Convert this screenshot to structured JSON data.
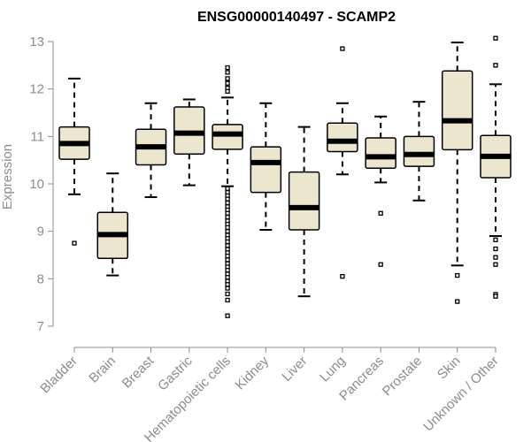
{
  "chart_data": {
    "type": "box",
    "title": "ENSG00000140497 - SCAMP2",
    "xlabel": "",
    "ylabel": "Expression",
    "ylim": [
      7,
      13
    ],
    "yticks": [
      7,
      8,
      9,
      10,
      11,
      12,
      13
    ],
    "box_fill": "#ede6cf",
    "box_stroke": "#000000",
    "axis_color": "#8c8c8c",
    "categories": [
      "Bladder",
      "Brain",
      "Breast",
      "Gastric",
      "Hematopoietic cells",
      "Kidney",
      "Liver",
      "Lung",
      "Pancreas",
      "Prostate",
      "Skin",
      "Unknown / Other"
    ],
    "boxes": [
      {
        "name": "Bladder",
        "whisker_low": 9.78,
        "q1": 10.52,
        "median": 10.85,
        "q3": 11.2,
        "whisker_high": 12.22,
        "outliers": [
          8.75
        ]
      },
      {
        "name": "Brain",
        "whisker_low": 8.07,
        "q1": 8.43,
        "median": 8.93,
        "q3": 9.4,
        "whisker_high": 10.22,
        "outliers": []
      },
      {
        "name": "Breast",
        "whisker_low": 9.72,
        "q1": 10.4,
        "median": 10.78,
        "q3": 11.15,
        "whisker_high": 11.7,
        "outliers": []
      },
      {
        "name": "Gastric",
        "whisker_low": 9.97,
        "q1": 10.63,
        "median": 11.07,
        "q3": 11.62,
        "whisker_high": 11.78,
        "outliers": []
      },
      {
        "name": "Hematopoietic cells",
        "whisker_low": 9.95,
        "q1": 10.73,
        "median": 11.05,
        "q3": 11.25,
        "whisker_high": 11.82,
        "outliers": [
          12.45,
          12.35,
          12.22,
          12.12,
          12.02,
          11.95,
          9.9,
          9.82,
          9.75,
          9.68,
          9.6,
          9.52,
          9.45,
          9.38,
          9.3,
          9.22,
          9.15,
          9.08,
          9.0,
          8.92,
          8.85,
          8.78,
          8.7,
          8.62,
          8.55,
          8.48,
          8.4,
          8.32,
          8.25,
          8.18,
          8.1,
          8.03,
          7.95,
          7.88,
          7.8,
          7.68,
          7.55,
          7.22
        ]
      },
      {
        "name": "Kidney",
        "whisker_low": 9.03,
        "q1": 9.82,
        "median": 10.45,
        "q3": 10.78,
        "whisker_high": 11.7,
        "outliers": []
      },
      {
        "name": "Liver",
        "whisker_low": 7.63,
        "q1": 9.03,
        "median": 9.5,
        "q3": 10.25,
        "whisker_high": 11.2,
        "outliers": []
      },
      {
        "name": "Lung",
        "whisker_low": 10.2,
        "q1": 10.68,
        "median": 10.9,
        "q3": 11.28,
        "whisker_high": 11.7,
        "outliers": [
          12.85,
          8.05
        ]
      },
      {
        "name": "Pancreas",
        "whisker_low": 10.03,
        "q1": 10.33,
        "median": 10.57,
        "q3": 10.97,
        "whisker_high": 11.42,
        "outliers": [
          9.38,
          8.3
        ]
      },
      {
        "name": "Prostate",
        "whisker_low": 9.65,
        "q1": 10.37,
        "median": 10.62,
        "q3": 11.0,
        "whisker_high": 11.73,
        "outliers": []
      },
      {
        "name": "Skin",
        "whisker_low": 8.28,
        "q1": 10.72,
        "median": 11.33,
        "q3": 12.38,
        "whisker_high": 12.98,
        "outliers": [
          8.07,
          7.52
        ]
      },
      {
        "name": "Unknown / Other",
        "whisker_low": 8.9,
        "q1": 10.13,
        "median": 10.58,
        "q3": 11.02,
        "whisker_high": 12.1,
        "outliers": [
          13.07,
          12.5,
          8.82,
          8.63,
          8.45,
          8.3,
          7.67,
          7.63
        ]
      }
    ]
  }
}
